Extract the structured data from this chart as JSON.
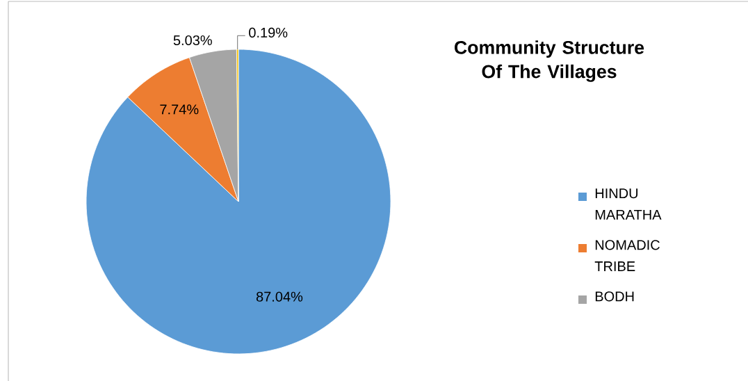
{
  "chart_data": {
    "type": "pie",
    "title": "Community Structure Of The Villages",
    "categories": [
      "HINDU MARATHA",
      "NOMADIC TRIBE",
      "BODH",
      null
    ],
    "values": [
      87.04,
      7.74,
      5.03,
      0.19
    ],
    "colors": [
      "#5b9bd5",
      "#ed7d31",
      "#a5a5a5",
      "#ffc000"
    ],
    "value_labels": [
      "87.04%",
      "7.74%",
      "5.03%",
      "0.19%"
    ],
    "legend": "right"
  }
}
